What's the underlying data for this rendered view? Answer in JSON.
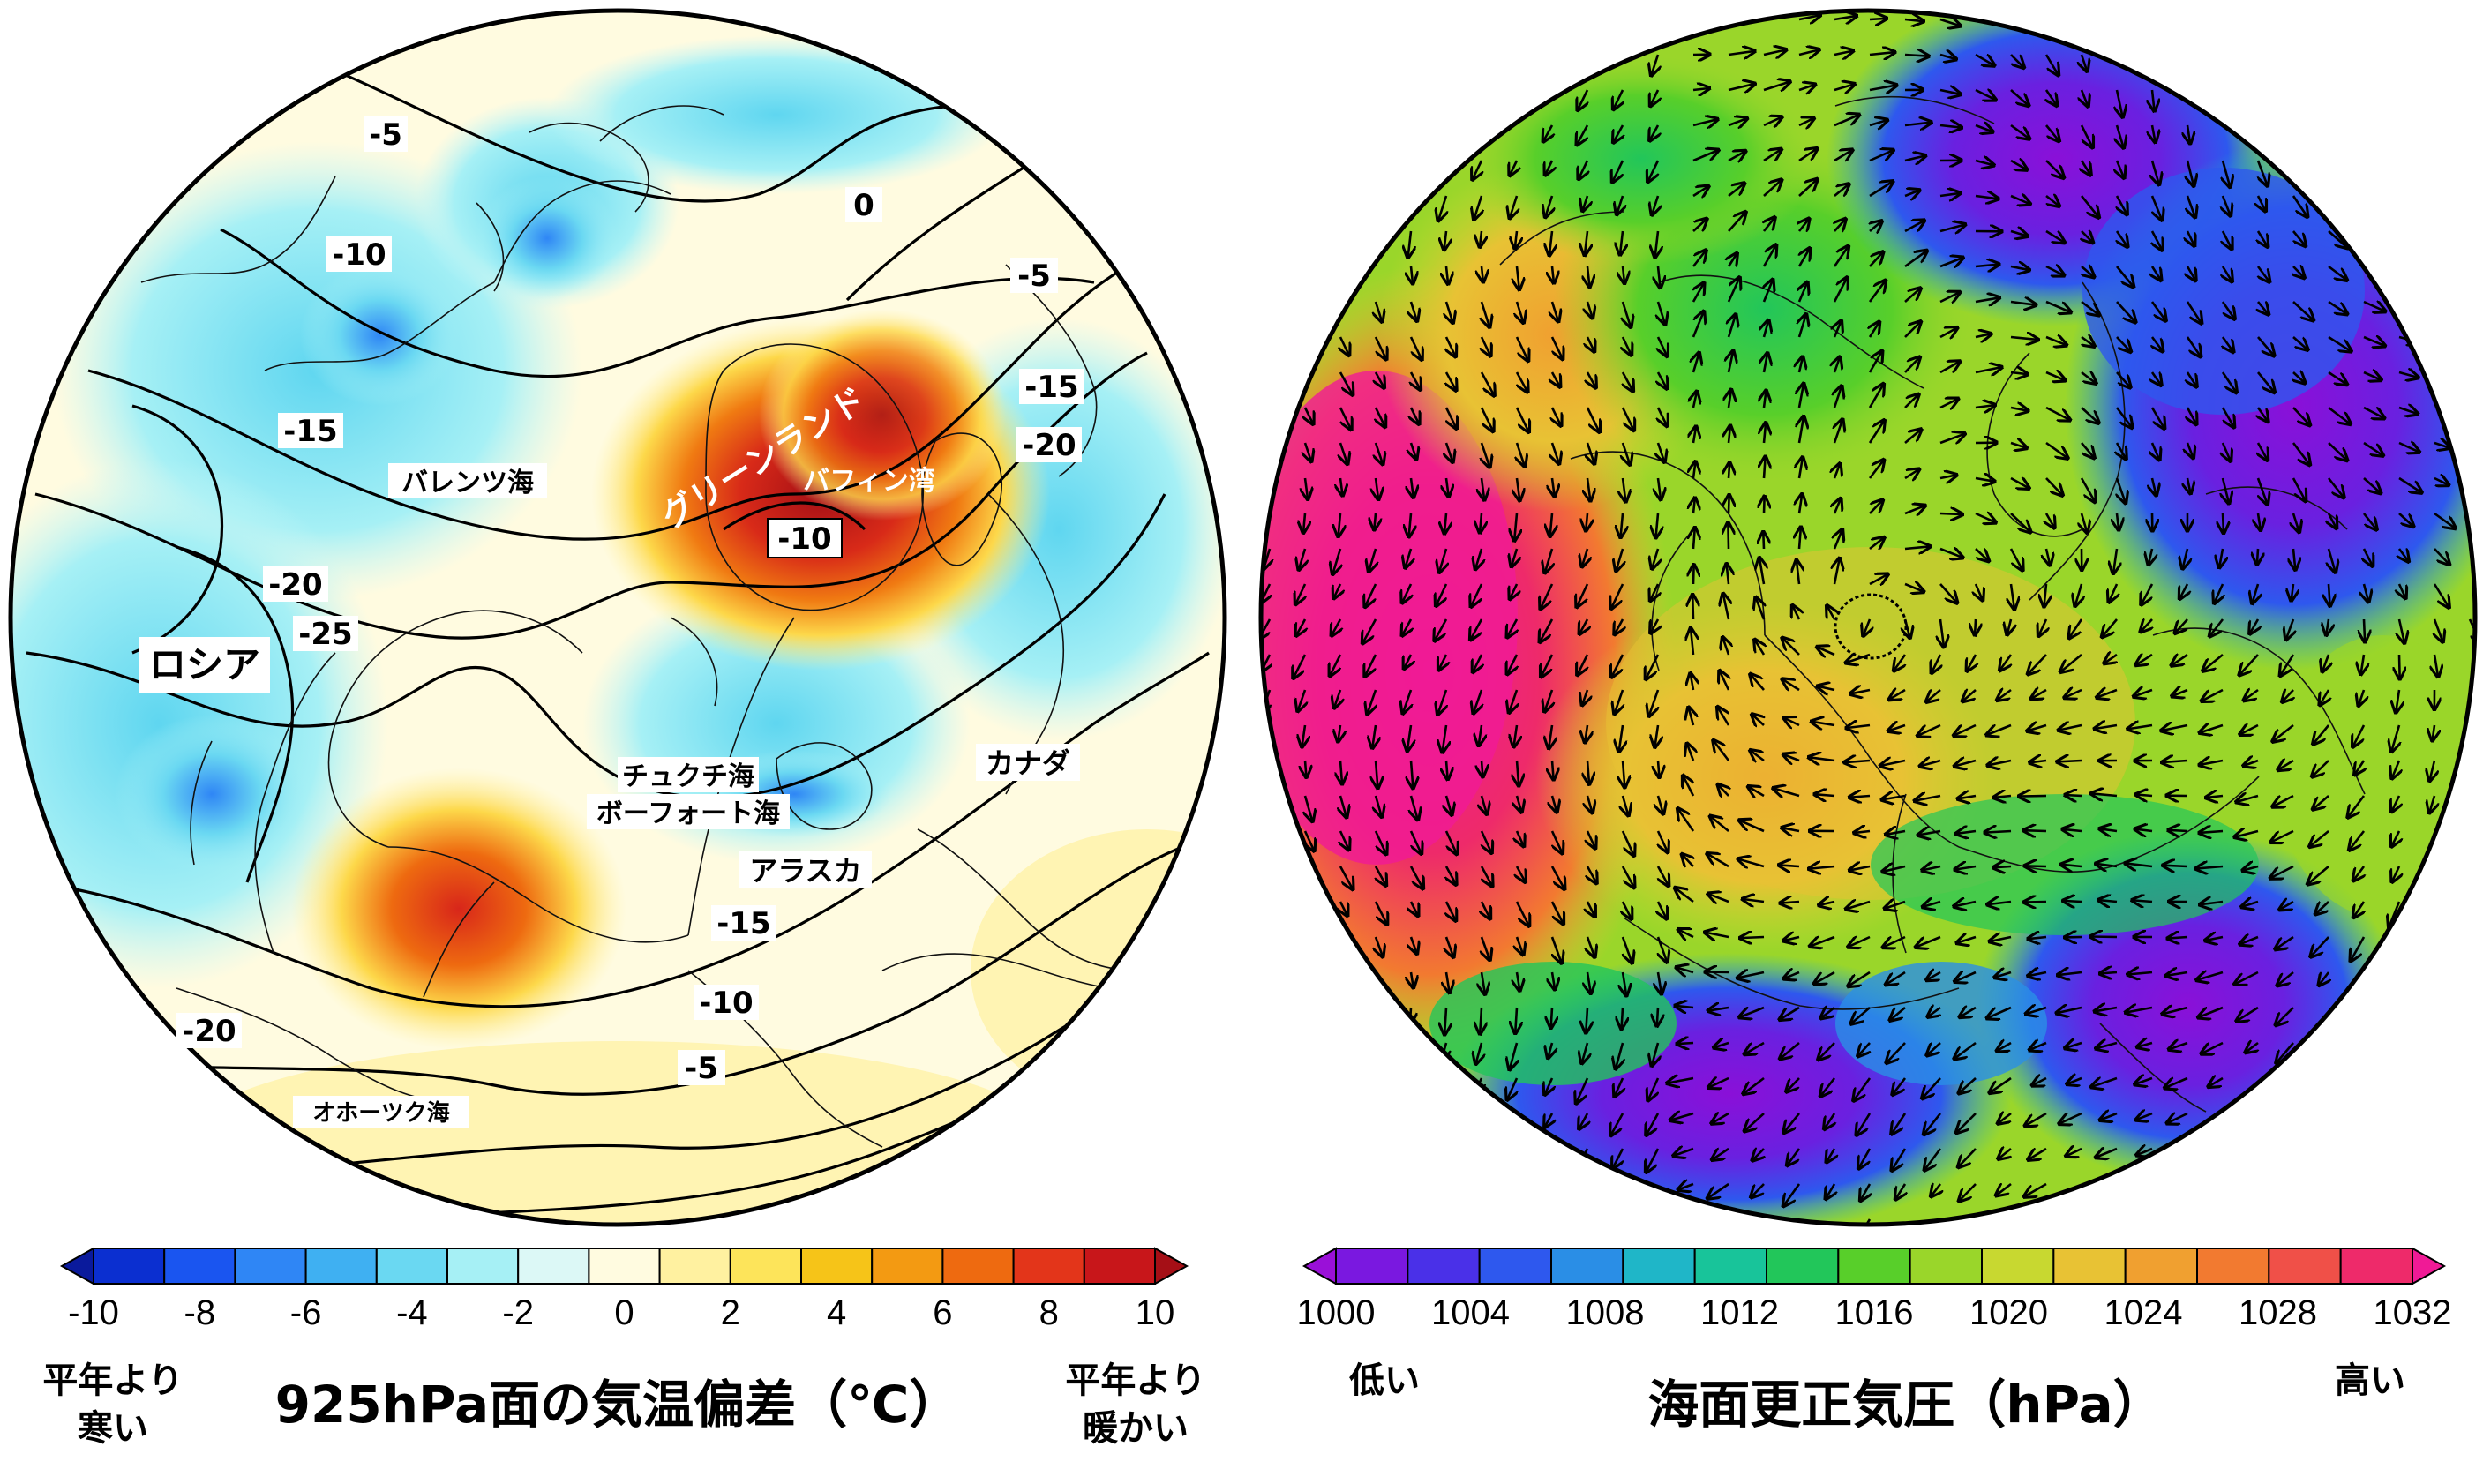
{
  "left_map": {
    "contour_labels": [
      "-5",
      "0",
      "-5",
      "-10",
      "-15",
      "-15",
      "-20",
      "-20",
      "-25",
      "-10",
      "-15",
      "-10",
      "-20",
      "-5"
    ],
    "place_labels": {
      "barents": "バレンツ海",
      "greenland": "グリーンランド",
      "baffin": "バフィン湾",
      "russia": "ロシア",
      "chukchi": "チュクチ海",
      "beaufort": "ボーフォート海",
      "canada": "カナダ",
      "alaska": "アラスカ",
      "okhotsk": "オホーツク海"
    },
    "colorbar": {
      "ticks": [
        "-10",
        "-8",
        "-6",
        "-4",
        "-2",
        "0",
        "2",
        "4",
        "6",
        "8",
        "10"
      ],
      "colors": [
        "#0a1a9c",
        "#0b2fd0",
        "#1a55f0",
        "#2f86f5",
        "#3fb0f2",
        "#6ad8f2",
        "#a6f0f5",
        "#dcf8f6",
        "#fffbe0",
        "#fff1a0",
        "#fde45a",
        "#f6c418",
        "#f39a12",
        "#ee6a10",
        "#e3351a",
        "#c8161a",
        "#a50f16"
      ]
    },
    "title": "925hPa面の気温偏差（℃）",
    "left_note": [
      "平年より",
      "寒い"
    ],
    "right_note": [
      "平年より",
      "暖かい"
    ]
  },
  "right_map": {
    "colorbar": {
      "ticks": [
        "1000",
        "1004",
        "1008",
        "1012",
        "1016",
        "1020",
        "1024",
        "1028",
        "1032"
      ],
      "colors": [
        "#9a10d8",
        "#7a18e0",
        "#4a30e8",
        "#2e58ee",
        "#2a8ee6",
        "#1fb6c8",
        "#18c49a",
        "#22c65a",
        "#58cf2a",
        "#9ad62a",
        "#c8d830",
        "#e8c234",
        "#f0a030",
        "#f27a30",
        "#f05048",
        "#ee2a6a",
        "#f01a96"
      ]
    },
    "title": "海面更正気圧（hPa）",
    "left_note": "低い",
    "right_note": "高い"
  }
}
